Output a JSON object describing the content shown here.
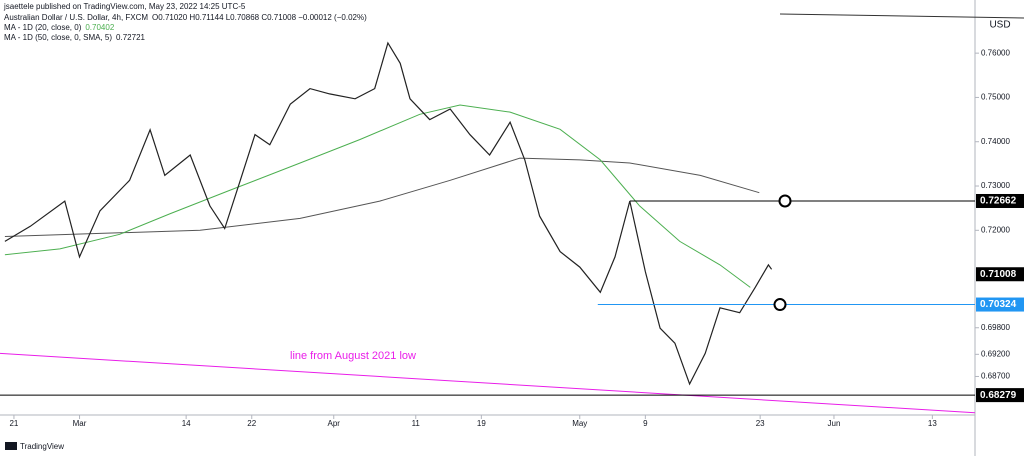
{
  "header": "jsaettele published on TradingView.com, May 23, 2022 14:25 UTC-5",
  "footer": "TradingView",
  "chart_data": {
    "type": "line",
    "xlim": [
      -1.7,
      117.2
    ],
    "ylim": [
      0.6783,
      0.772
    ],
    "currency": "USD",
    "xticks": [
      {
        "value": 0,
        "label": "21"
      },
      {
        "value": 8,
        "label": "Mar"
      },
      {
        "value": 21,
        "label": "14"
      },
      {
        "value": 29,
        "label": "22"
      },
      {
        "value": 39,
        "label": "Apr"
      },
      {
        "value": 49,
        "label": "11"
      },
      {
        "value": 57,
        "label": "19"
      },
      {
        "value": 69,
        "label": "May"
      },
      {
        "value": 77,
        "label": "9"
      },
      {
        "value": 91,
        "label": "23"
      },
      {
        "value": 100,
        "label": "Jun"
      },
      {
        "value": 112,
        "label": "13"
      }
    ],
    "yticks": [
      {
        "value": 0.76,
        "label": "0.76000"
      },
      {
        "value": 0.75,
        "label": "0.75000"
      },
      {
        "value": 0.74,
        "label": "0.74000"
      },
      {
        "value": 0.73,
        "label": "0.73000"
      },
      {
        "value": 0.72,
        "label": "0.72000"
      },
      {
        "value": 0.698,
        "label": "0.69800"
      },
      {
        "value": 0.692,
        "label": "0.69200"
      },
      {
        "value": 0.687,
        "label": "0.68700"
      }
    ],
    "series": [
      {
        "name": "Australian Dollar / U.S. Dollar, 4h, FXCM",
        "quote": "O0.71020 H0.71144 L0.70868 C0.71008 −0.00012 (−0.02%)",
        "color": "#222222",
        "x": [
          -1.1,
          2.0,
          6.2,
          8.0,
          10.5,
          14.1,
          16.6,
          18.4,
          21.5,
          23.9,
          25.7,
          27.6,
          29.4,
          31.2,
          33.7,
          36.1,
          38.5,
          41.6,
          44.0,
          45.6,
          47.1,
          48.3,
          50.7,
          53.2,
          55.6,
          58.0,
          60.5,
          62.3,
          64.1,
          66.6,
          69.0,
          71.5,
          73.3,
          75.1,
          77.0,
          78.8,
          80.6,
          82.4,
          84.3,
          86.1,
          88.5,
          90.4,
          92.0,
          92.4
        ],
        "values": [
          0.7175,
          0.7209,
          0.7266,
          0.714,
          0.7244,
          0.7313,
          0.7427,
          0.7324,
          0.737,
          0.7255,
          0.7204,
          0.7313,
          0.7416,
          0.7393,
          0.7485,
          0.752,
          0.7508,
          0.7497,
          0.752,
          0.7623,
          0.7577,
          0.7497,
          0.745,
          0.7474,
          0.7416,
          0.737,
          0.7444,
          0.7359,
          0.7232,
          0.7152,
          0.7117,
          0.706,
          0.714,
          0.7266,
          0.7106,
          0.6979,
          0.6945,
          0.6853,
          0.6922,
          0.7025,
          0.7014,
          0.7071,
          0.7122,
          0.7112
        ]
      },
      {
        "name": "MA - 1D (20, close, 0)",
        "last": 0.70402,
        "color": "#4caf50",
        "x": [
          -1.1,
          5.6,
          12.9,
          19.0,
          26.3,
          34.9,
          42.2,
          49.5,
          54.4,
          60.5,
          66.6,
          71.5,
          76.3,
          81.2,
          86.1,
          89.8
        ],
        "values": [
          0.7145,
          0.7158,
          0.7191,
          0.7237,
          0.729,
          0.7352,
          0.7405,
          0.7462,
          0.7483,
          0.7467,
          0.7428,
          0.7359,
          0.7255,
          0.7175,
          0.7122,
          0.7071
        ]
      },
      {
        "name": "MA - 1D (50, close, 0, SMA, 5)",
        "last": 0.72721,
        "color": "#555555",
        "x": [
          -1.1,
          10.5,
          22.7,
          34.9,
          44.6,
          53.2,
          61.7,
          69.0,
          75.1,
          83.7,
          90.9
        ],
        "values": [
          0.7186,
          0.7193,
          0.72,
          0.7227,
          0.7266,
          0.7313,
          0.7363,
          0.7359,
          0.7352,
          0.7324,
          0.7285
        ]
      }
    ],
    "trendline": {
      "label": "line from August 2021 low",
      "color": "#e91ee9",
      "x": [
        -1.7,
        117.2
      ],
      "values": [
        0.6922,
        0.6788
      ]
    },
    "levels": [
      {
        "value": 0.72662,
        "color": "#000000",
        "from": 75.1
      },
      {
        "value": 0.71008,
        "color": "#000000"
      },
      {
        "value": 0.70324,
        "color": "#2196f3",
        "from": 71.2
      },
      {
        "value": 0.68279,
        "color": "#000000",
        "from": -1.7
      }
    ]
  }
}
